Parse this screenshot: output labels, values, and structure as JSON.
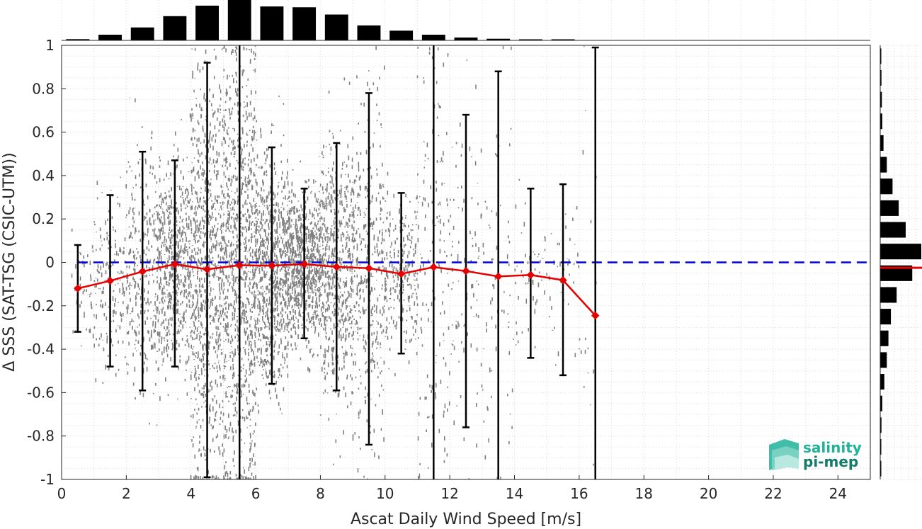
{
  "chart_data": {
    "type": "scatter",
    "title": "",
    "xlabel": "Ascat Daily Wind Speed [m/s]",
    "ylabel": "Δ SSS (SAT-TSG (CSIC-UTM))",
    "xlim": [
      0,
      25
    ],
    "ylim": [
      -1,
      1
    ],
    "x_ticks": [
      "0",
      "2",
      "4",
      "6",
      "8",
      "10",
      "12",
      "14",
      "16",
      "18",
      "20",
      "22",
      "24"
    ],
    "y_ticks": [
      "-1",
      "-0.8",
      "-0.6",
      "-0.4",
      "-0.2",
      "0",
      "0.2",
      "0.4",
      "0.6",
      "0.8",
      "1"
    ],
    "grid": true,
    "zero_reference_line": {
      "y": 0,
      "style": "dashed",
      "color": "#0000dd"
    },
    "bin_centers": [
      0.5,
      1.5,
      2.5,
      3.5,
      4.5,
      5.5,
      6.5,
      7.5,
      8.5,
      9.5,
      10.5,
      11.5,
      12.5,
      13.5,
      14.5,
      15.5,
      16.5
    ],
    "series": [
      {
        "kind": "binned-mean",
        "color": "#e60000",
        "marker": "diamond",
        "values": [
          -0.12,
          -0.085,
          -0.042,
          -0.008,
          -0.032,
          -0.013,
          -0.015,
          -0.008,
          -0.021,
          -0.027,
          -0.053,
          -0.022,
          -0.04,
          -0.065,
          -0.058,
          -0.082,
          -0.245
        ]
      },
      {
        "kind": "error-bars",
        "color": "#000000",
        "upper": [
          0.08,
          0.31,
          0.51,
          0.47,
          0.92,
          1.0,
          0.53,
          0.34,
          0.55,
          0.78,
          0.32,
          1.0,
          0.68,
          0.88,
          0.34,
          0.36,
          0.99
        ],
        "lower": [
          -0.32,
          -0.48,
          -0.59,
          -0.48,
          -0.99,
          -1.0,
          -0.56,
          -0.35,
          -0.59,
          -0.84,
          -0.42,
          -1.0,
          -0.76,
          -1.0,
          -0.44,
          -0.52,
          -1.0
        ]
      },
      {
        "kind": "scatter-cloud",
        "color": "#808080",
        "x_range": [
          0.3,
          16.6
        ],
        "y_range": [
          -1,
          1
        ]
      }
    ],
    "top_histogram": {
      "axis": "x",
      "bins": [
        0.5,
        1.5,
        2.5,
        3.5,
        4.5,
        5.5,
        6.5,
        7.5,
        8.5,
        9.5,
        10.5,
        11.5,
        12.5,
        13.5,
        14.5,
        15.5,
        16.5
      ],
      "relative_counts": [
        0.03,
        0.14,
        0.32,
        0.6,
        0.86,
        1.0,
        0.84,
        0.82,
        0.64,
        0.37,
        0.24,
        0.14,
        0.07,
        0.04,
        0.02,
        0.01,
        0.0
      ]
    },
    "right_histogram": {
      "axis": "y",
      "bins": [
        0.95,
        0.85,
        0.75,
        0.65,
        0.55,
        0.45,
        0.35,
        0.25,
        0.15,
        0.05,
        -0.05,
        -0.15,
        -0.25,
        -0.35,
        -0.45,
        -0.55,
        -0.65,
        -0.75,
        -0.85,
        -0.95
      ],
      "relative_counts": [
        0.02,
        0.03,
        0.04,
        0.05,
        0.08,
        0.16,
        0.3,
        0.45,
        0.62,
        1.0,
        0.78,
        0.4,
        0.26,
        0.2,
        0.16,
        0.1,
        0.05,
        0.03,
        0.02,
        0.01
      ],
      "mean_marker": {
        "value": -0.025,
        "color": "#e60000"
      }
    }
  },
  "logo": {
    "line1": "salinity",
    "line2": "pi-mep",
    "color1": "#1fb39a",
    "color2": "#147a6a"
  }
}
